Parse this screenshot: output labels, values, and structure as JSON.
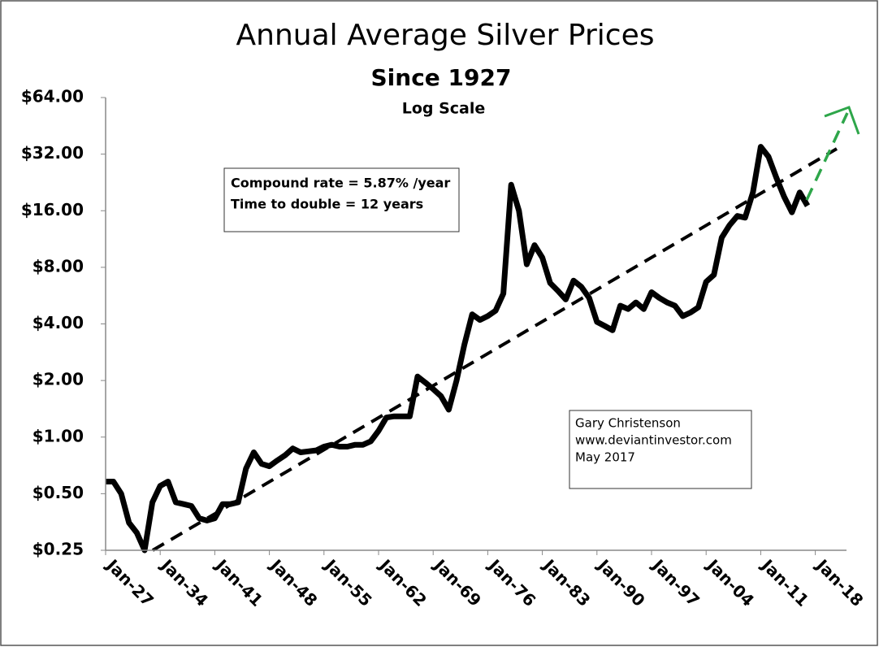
{
  "chart_data": {
    "type": "line",
    "title": "Annual Average Silver Prices",
    "subtitle": "Since 1927",
    "scale_note": "Log Scale",
    "annotation": [
      "Compound rate = 5.87% /year",
      "Time to double = 12 years"
    ],
    "attribution": [
      "Gary Christenson",
      "www.deviantinvestor.com",
      "May 2017"
    ],
    "log_scale": true,
    "color": "#000000",
    "categories": [
      "Jan-27",
      null,
      null,
      null,
      null,
      null,
      null,
      "Jan-34",
      null,
      null,
      null,
      null,
      null,
      null,
      "Jan-41",
      null,
      null,
      null,
      null,
      null,
      null,
      "Jan-48",
      null,
      null,
      null,
      null,
      null,
      null,
      "Jan-55",
      null,
      null,
      null,
      null,
      null,
      null,
      "Jan-62",
      null,
      null,
      null,
      null,
      null,
      null,
      "Jan-69",
      null,
      null,
      null,
      null,
      null,
      null,
      "Jan-76",
      null,
      null,
      null,
      null,
      null,
      null,
      "Jan-83",
      null,
      null,
      null,
      null,
      null,
      null,
      "Jan-90",
      null,
      null,
      null,
      null,
      null,
      null,
      "Jan-97",
      null,
      null,
      null,
      null,
      null,
      null,
      "Jan-04",
      null,
      null,
      null,
      null,
      null,
      null,
      "Jan-11",
      null,
      null,
      null,
      null,
      null,
      null,
      "Jan-18",
      null,
      null,
      null
    ],
    "values": [
      0.58,
      0.58,
      0.5,
      0.35,
      0.31,
      0.25,
      0.45,
      0.55,
      0.58,
      0.45,
      0.44,
      0.43,
      0.37,
      0.36,
      0.37,
      0.44,
      0.44,
      0.45,
      0.68,
      0.83,
      0.72,
      0.7,
      0.75,
      0.8,
      0.87,
      0.83,
      0.84,
      0.85,
      0.89,
      0.91,
      0.89,
      0.89,
      0.91,
      0.91,
      0.95,
      1.08,
      1.27,
      1.29,
      1.29,
      1.29,
      2.1,
      1.95,
      1.8,
      1.65,
      1.4,
      2.0,
      3.1,
      4.5,
      4.2,
      4.4,
      4.7,
      5.8,
      22,
      16,
      8.3,
      10.5,
      9,
      6.6,
      6,
      5.4,
      6.8,
      6.3,
      5.5,
      4.1,
      3.9,
      3.7,
      5.0,
      4.8,
      5.2,
      4.8,
      5.9,
      5.5,
      5.2,
      5.0,
      4.4,
      4.6,
      4.9,
      6.7,
      7.3,
      11.5,
      13.4,
      15,
      14.7,
      20,
      35,
      31,
      24,
      19,
      15.7,
      20,
      17,
      null,
      null,
      null,
      null
    ],
    "ylim": [
      0.25,
      64
    ],
    "yticks": [
      {
        "value": 0.25,
        "label": "$0.25"
      },
      {
        "value": 0.5,
        "label": "$0.50"
      },
      {
        "value": 1,
        "label": "$1.00"
      },
      {
        "value": 2,
        "label": "$2.00"
      },
      {
        "value": 4,
        "label": "$4.00"
      },
      {
        "value": 8,
        "label": "$8.00"
      },
      {
        "value": 16,
        "label": "$16.00"
      },
      {
        "value": 32,
        "label": "$32.00"
      },
      {
        "value": 64,
        "label": "$64.00"
      }
    ]
  }
}
